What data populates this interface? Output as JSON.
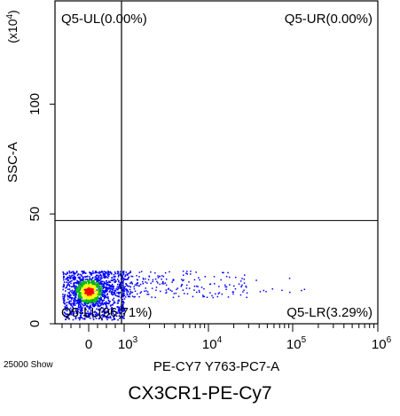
{
  "chart_data": {
    "type": "scatter",
    "subtype": "flow-cytometry-quadrant-dot-plot",
    "xlabel": "PE-CY7 Y763-PC7-A",
    "ylabel": "SSC-A",
    "y_multiplier_label": "(x10",
    "y_multiplier_exp": "4",
    "y_multiplier_close": ")",
    "x_scale": "biexponential",
    "x_ticks": [
      {
        "base": "0",
        "exp": ""
      },
      {
        "base": "10",
        "exp": "3"
      },
      {
        "base": "10",
        "exp": "4"
      },
      {
        "base": "10",
        "exp": "5"
      },
      {
        "base": "10",
        "exp": "6"
      }
    ],
    "y_ticks": [
      "0",
      "50",
      "100"
    ],
    "y_tick_values": [
      0,
      50,
      100
    ],
    "ylim": [
      0,
      147
    ],
    "events_shown": "25000 Show",
    "quadrants": {
      "UL": "Q5-UL(0.00%)",
      "UR": "Q5-UR(0.00%)",
      "LL": "Q5-LL(96.71%)",
      "LR": "Q5-LR(3.29%)"
    },
    "gate": {
      "y_threshold": 47
    },
    "density_colors": [
      "#0000ff",
      "#00c000",
      "#ffff00",
      "#ff0000"
    ],
    "caption": "CX3CR1-PE-Cy7"
  }
}
